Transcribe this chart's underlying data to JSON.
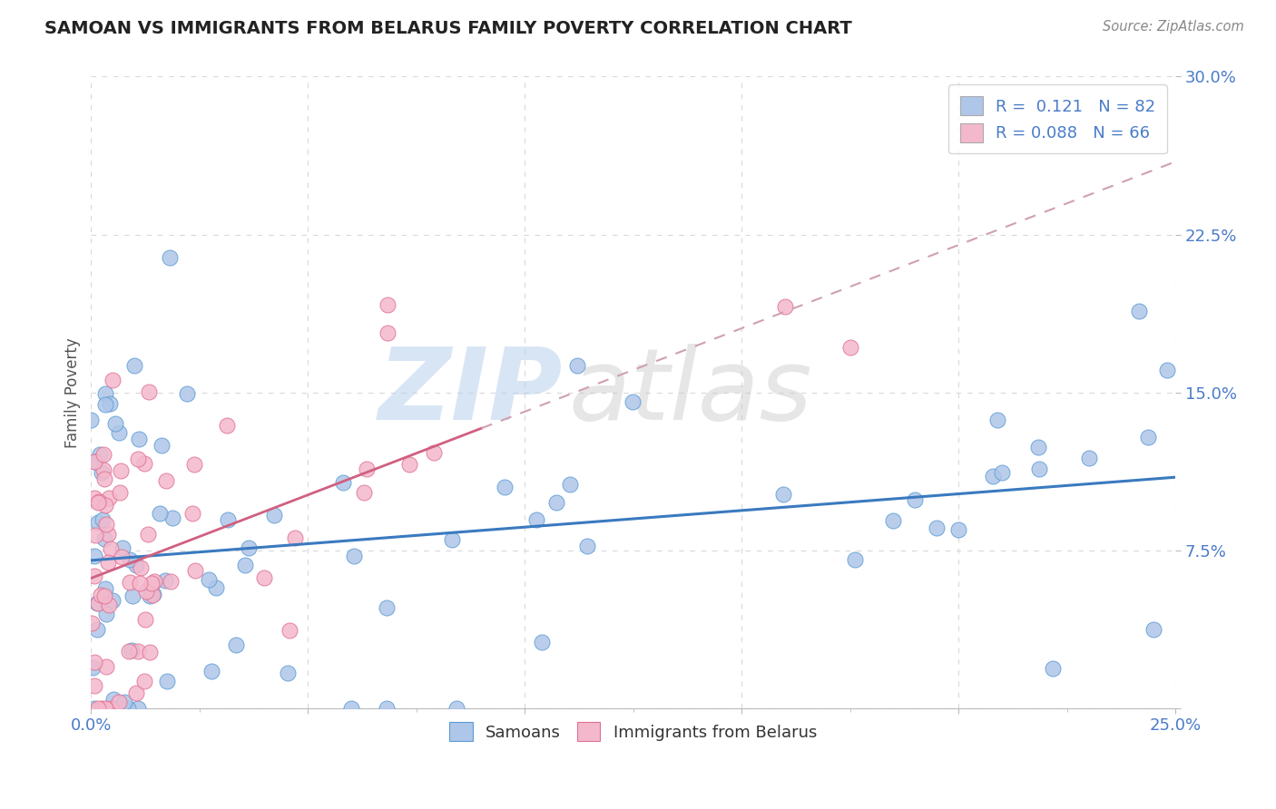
{
  "title": "SAMOAN VS IMMIGRANTS FROM BELARUS FAMILY POVERTY CORRELATION CHART",
  "source": "Source: ZipAtlas.com",
  "ylabel": "Family Poverty",
  "xmin": 0.0,
  "xmax": 0.25,
  "ymin": 0.0,
  "ymax": 0.3,
  "xticks": [
    0.0,
    0.05,
    0.1,
    0.15,
    0.2,
    0.25
  ],
  "yticks": [
    0.0,
    0.075,
    0.15,
    0.225,
    0.3
  ],
  "xtick_labels": [
    "0.0%",
    "",
    "",
    "",
    "",
    "25.0%"
  ],
  "ytick_labels": [
    "",
    "7.5%",
    "15.0%",
    "22.5%",
    "30.0%"
  ],
  "blue_R": 0.121,
  "blue_N": 82,
  "pink_R": 0.088,
  "pink_N": 66,
  "blue_color": "#aec6e8",
  "pink_color": "#f4b8cc",
  "blue_edge_color": "#5b9bd5",
  "pink_edge_color": "#e07090",
  "blue_line_color": "#3a7abf",
  "pink_line_color": "#d06080",
  "pink_dash_color": "#d0a0b0",
  "watermark_text": "ZIPatlas",
  "legend_label_blue": "Samoans",
  "legend_label_pink": "Immigrants from Belarus",
  "background_color": "#ffffff",
  "grid_color": "#d8d8d8",
  "title_color": "#222222",
  "source_color": "#888888",
  "tick_color": "#4a7cc9",
  "ylabel_color": "#555555"
}
